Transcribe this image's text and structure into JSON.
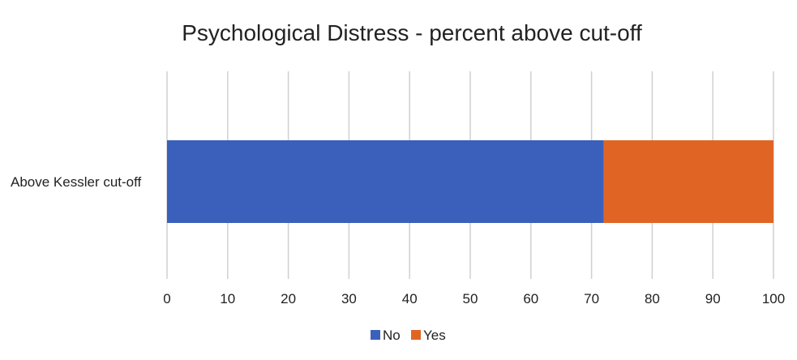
{
  "chart_data": {
    "type": "bar",
    "orientation": "horizontal",
    "stacked": true,
    "title": "Psychological Distress - percent above cut-off",
    "categories": [
      "Above Kessler cut-off"
    ],
    "series": [
      {
        "name": "No",
        "values": [
          72
        ],
        "color": "#3a60bc"
      },
      {
        "name": "Yes",
        "values": [
          28
        ],
        "color": "#e06524"
      }
    ],
    "xlim": [
      0,
      100
    ],
    "xticks": [
      "0",
      "10",
      "20",
      "30",
      "40",
      "50",
      "60",
      "70",
      "80",
      "90",
      "100"
    ],
    "grid": true,
    "legend_position": "bottom"
  }
}
